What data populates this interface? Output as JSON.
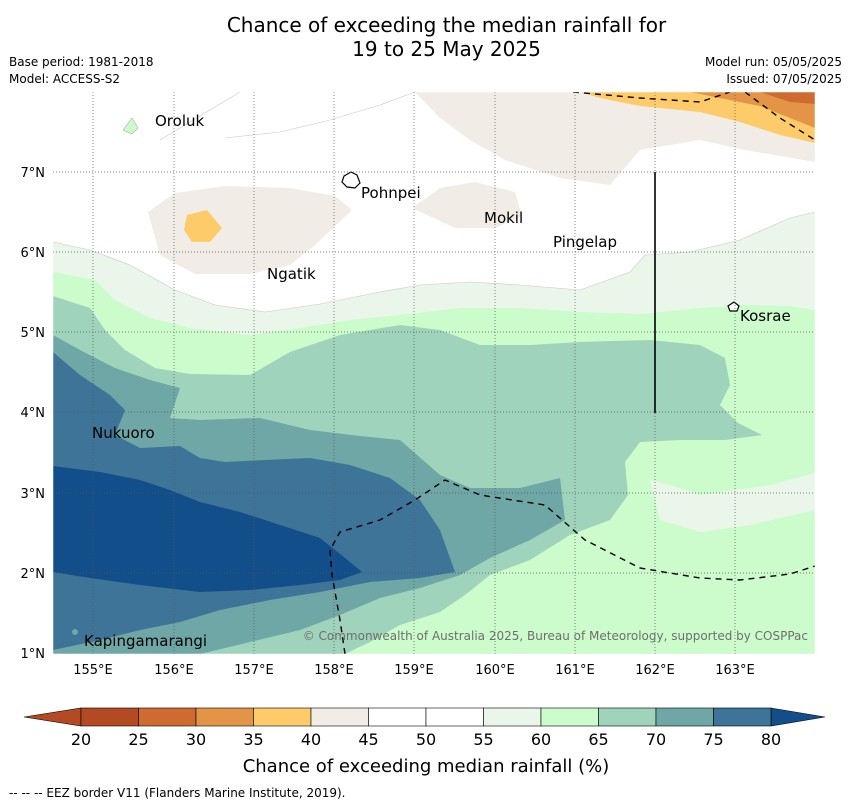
{
  "title": {
    "line1": "Chance of exceeding the median rainfall for",
    "line2": "19 to 25 May 2025"
  },
  "meta": {
    "base_period": "Base period: 1981-2018",
    "model": "Model: ACCESS-S2",
    "model_run": "Model run: 05/05/2025",
    "issued": "Issued: 07/05/2025"
  },
  "map": {
    "lon_ticks": [
      "155°E",
      "156°E",
      "157°E",
      "158°E",
      "159°E",
      "160°E",
      "161°E",
      "162°E",
      "163°E"
    ],
    "lat_ticks": [
      "7°N",
      "6°N",
      "5°N",
      "4°N",
      "3°N",
      "2°N",
      "1°N"
    ],
    "places": [
      {
        "name": "Oroluk"
      },
      {
        "name": "Pohnpei"
      },
      {
        "name": "Mokil"
      },
      {
        "name": "Pingelap"
      },
      {
        "name": "Ngatik"
      },
      {
        "name": "Kosrae"
      },
      {
        "name": "Nukuoro"
      },
      {
        "name": "Kapingamarangi"
      }
    ],
    "copyright": "© Commonwealth of Australia 2025, Bureau of Meteorology, supported by COSPPac"
  },
  "colorbar": {
    "ticks": [
      "20",
      "25",
      "30",
      "35",
      "40",
      "45",
      "50",
      "55",
      "60",
      "65",
      "70",
      "75",
      "80"
    ],
    "colors": [
      "#b34a24",
      "#cf6a31",
      "#e39446",
      "#fdcb6a",
      "#f1ede6",
      "#ffffff",
      "#ffffff",
      "#eaf6ea",
      "#ccfccc",
      "#9fd3bc",
      "#6ea7a6",
      "#3e7497",
      "#124e89"
    ],
    "label": "Chance of exceeding median rainfall (%)"
  },
  "footer": {
    "eez_legend": "--  --  -- EEZ border V11 (Flanders Marine Institute, 2019)."
  }
}
